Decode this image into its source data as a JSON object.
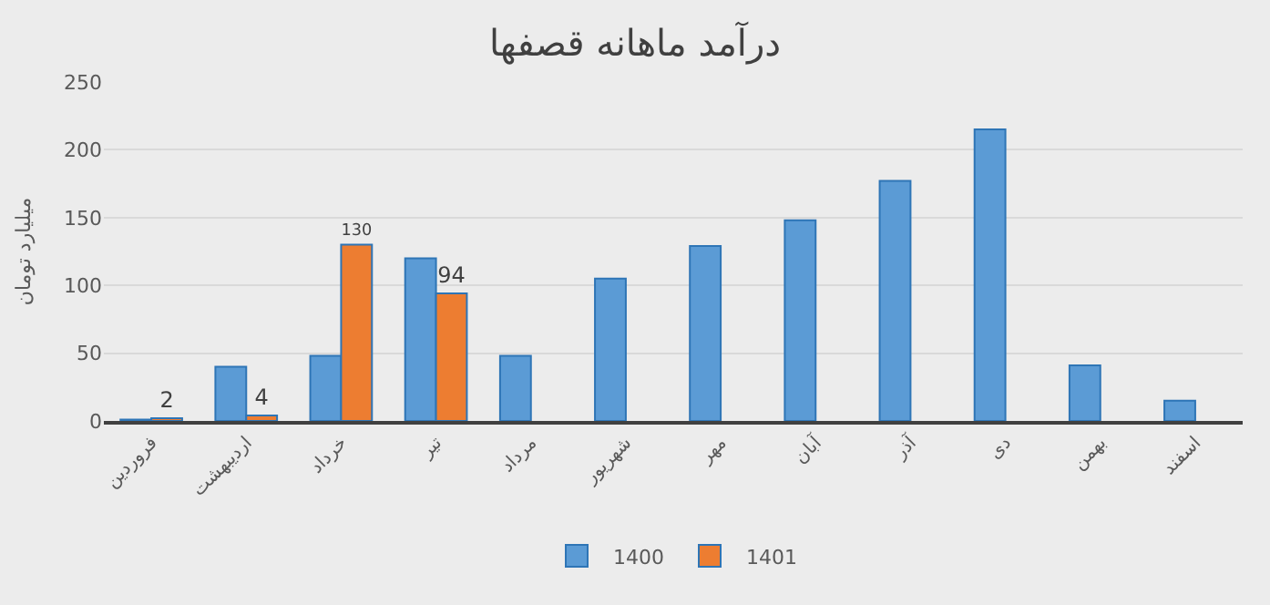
{
  "chart_data": {
    "type": "bar",
    "title": "درآمد ماهانه قصفها",
    "ylabel": "میلیارد تومان",
    "categories": [
      "فروردین",
      "اردیبهشت",
      "خرداد",
      "تیر",
      "مرداد",
      "شهریور",
      "مهر",
      "آبان",
      "آذر",
      "دی",
      "بهمن",
      "اسفند"
    ],
    "series": [
      {
        "name": "1400",
        "color": "#5b9bd5",
        "values": [
          1,
          40,
          48,
          120,
          48,
          105,
          129,
          148,
          177,
          215,
          41,
          15
        ]
      },
      {
        "name": "1401",
        "color": "#ed7d31",
        "values": [
          2,
          4,
          130,
          94,
          null,
          null,
          null,
          null,
          null,
          null,
          null,
          null
        ],
        "value_labels": [
          "2",
          "4",
          "130",
          "94",
          null,
          null,
          null,
          null,
          null,
          null,
          null,
          null
        ]
      }
    ],
    "ylim": [
      0,
      250
    ],
    "yticks": [
      0,
      50,
      100,
      150,
      200,
      250
    ],
    "grid": "y",
    "legend": "bottom"
  }
}
